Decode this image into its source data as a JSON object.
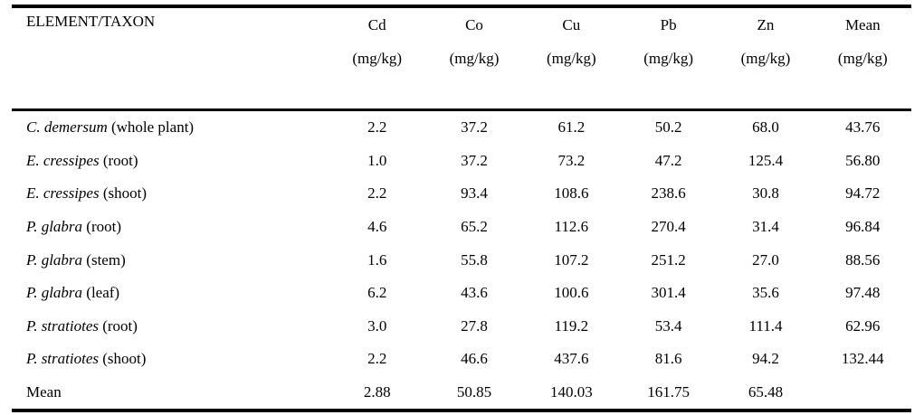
{
  "page": {
    "background_color": "#ffffff",
    "text_color": "#000000",
    "rule_color": "#000000"
  },
  "table": {
    "header": {
      "row_label": "ELEMENT/TAXON",
      "columns": [
        {
          "element": "Cd",
          "unit": "(mg/kg)"
        },
        {
          "element": "Co",
          "unit": "(mg/kg)"
        },
        {
          "element": "Cu",
          "unit": "(mg/kg)"
        },
        {
          "element": "Pb",
          "unit": "(mg/kg)"
        },
        {
          "element": "Zn",
          "unit": "(mg/kg)"
        },
        {
          "element": "Mean",
          "unit": "(mg/kg)"
        }
      ]
    },
    "rows": [
      {
        "taxon": "C. demersum",
        "part": "(whole plant)",
        "values": [
          "2.2",
          "37.2",
          "61.2",
          "50.2",
          "68.0",
          "43.76"
        ]
      },
      {
        "taxon": "E. cressipes",
        "part": "(root)",
        "values": [
          "1.0",
          "37.2",
          "73.2",
          "47.2",
          "125.4",
          "56.80"
        ]
      },
      {
        "taxon": "E. cressipes",
        "part": "(shoot)",
        "values": [
          "2.2",
          "93.4",
          "108.6",
          "238.6",
          "30.8",
          "94.72"
        ]
      },
      {
        "taxon": "P. glabra",
        "part": "(root)",
        "values": [
          "4.6",
          "65.2",
          "112.6",
          "270.4",
          "31.4",
          "96.84"
        ]
      },
      {
        "taxon": "P. glabra",
        "part": "(stem)",
        "values": [
          "1.6",
          "55.8",
          "107.2",
          "251.2",
          "27.0",
          "88.56"
        ]
      },
      {
        "taxon": "P. glabra",
        "part": "(leaf)",
        "values": [
          "6.2",
          "43.6",
          "100.6",
          "301.4",
          "35.6",
          "97.48"
        ]
      },
      {
        "taxon": "P. stratiotes",
        "part": "(root)",
        "values": [
          "3.0",
          "27.8",
          "119.2",
          "53.4",
          "111.4",
          "62.96"
        ]
      },
      {
        "taxon": "P. stratiotes",
        "part": "(shoot)",
        "values": [
          "2.2",
          "46.6",
          "437.6",
          "81.6",
          "94.2",
          "132.44"
        ]
      },
      {
        "taxon": "",
        "part": "Mean",
        "values": [
          "2.88",
          "50.85",
          "140.03",
          "161.75",
          "65.48",
          ""
        ]
      }
    ]
  }
}
